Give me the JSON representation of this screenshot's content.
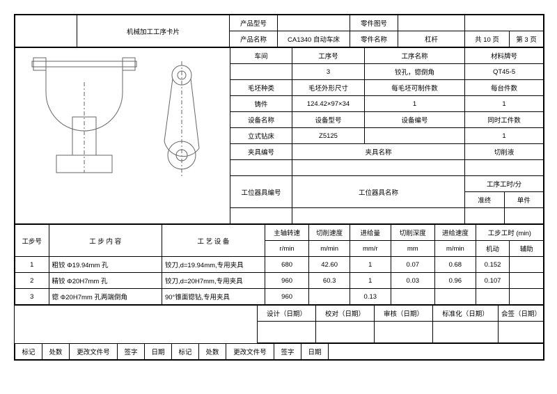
{
  "title": "机械加工工序卡片",
  "header": {
    "productModel_label": "产品型号",
    "productModel": "",
    "partDrawing_label": "零件图号",
    "partDrawing": "",
    "productName_label": "产品名称",
    "productName": "CA1340 自动车床",
    "partName_label": "零件名称",
    "partName": "杠杆",
    "pages_label": "共 10 页",
    "pageNo_label": "第 3 页"
  },
  "info": {
    "workshop_label": "车间",
    "procNo_label": "工序号",
    "procName_label": "工序名称",
    "material_label": "材料牌号",
    "procNo": "3",
    "procName": "铰孔，锪倒角",
    "material": "QT45-5",
    "blankType_label": "毛坯种类",
    "blankSize_label": "毛坯外形尺寸",
    "blankPerPiece_label": "每毛坯可制件数",
    "perMachine_label": "每台件数",
    "blankType": "铸件",
    "blankSize": "124.42×97×34",
    "blankPerPiece": "1",
    "perMachine": "1",
    "equipName_label": "设备名称",
    "equipModel_label": "设备型号",
    "equipNo_label": "设备编号",
    "simulPieces_label": "同时工件数",
    "equipName": "立式钻床",
    "equipModel": "Z5125",
    "equipNo": "",
    "simulPieces": "1",
    "fixtureNo_label": "夹具编号",
    "fixtureName_label": "夹具名称",
    "coolant_label": "切削液",
    "stationToolNo_label": "工位器具编号",
    "stationToolName_label": "工位器具名称",
    "procTime_label": "工序工时/分",
    "prep_label": "准终",
    "unit_label": "单件"
  },
  "stepHeaders": {
    "stepNo": "工步号",
    "stepContent": "工 步 内 容",
    "equipment": "工 艺 设 备",
    "spindle": "主轴转速",
    "cutSpeed": "切削速度",
    "feed": "进给量",
    "cutDepth": "切削深度",
    "feedSpeed": "进给速度",
    "stepTime": "工步工时 (min)",
    "u_spindle": "r/min",
    "u_cutSpeed": "m/min",
    "u_feed": "mm/r",
    "u_cutDepth": "mm",
    "u_feedSpeed": "m/min",
    "machine": "机动",
    "aux": "辅助"
  },
  "steps": [
    {
      "no": "1",
      "content": "粗铰 Φ19.94mm 孔",
      "equip": "铰刀,d=19.94mm,专用夹具",
      "spindle": "680",
      "speed": "42.60",
      "feed": "1",
      "depth": "0.07",
      "feedSpeed": "0.68",
      "mach": "0.152",
      "aux": ""
    },
    {
      "no": "2",
      "content": "精铰 Φ20H7mm 孔",
      "equip": "铰刀,d=20H7mm,专用夹具",
      "spindle": "960",
      "speed": "60.3",
      "feed": "1",
      "depth": "0.03",
      "feedSpeed": "0.96",
      "mach": "0.107",
      "aux": ""
    },
    {
      "no": "3",
      "content": "锪 Φ20H7mm 孔两端倒角",
      "equip": "90°锥面锪钻,专用夹具",
      "spindle": "960",
      "speed": "",
      "feed": "0.13",
      "depth": "",
      "feedSpeed": "",
      "mach": "",
      "aux": ""
    }
  ],
  "footer": {
    "design": "设计（日期）",
    "proof": "校对（日期）",
    "review": "审核（日期）",
    "standard": "标准化（日期）",
    "approve": "会签（日期）",
    "mark": "标记",
    "count": "处数",
    "changeDoc": "更改文件号",
    "sign": "签字",
    "date": "日期"
  }
}
